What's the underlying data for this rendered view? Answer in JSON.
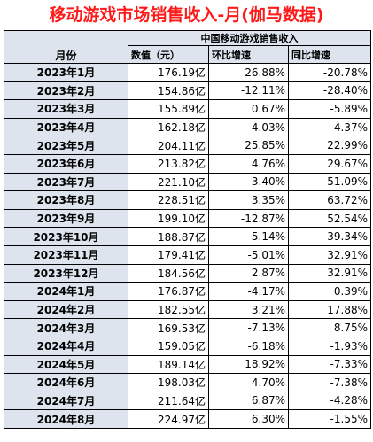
{
  "title": "移动游戏市场销售收入-月(伽马数据)",
  "table": {
    "month_header": "月份",
    "group_header": "中国移动游戏销售收入",
    "columns": [
      "数值（元）",
      "环比增速",
      "同比增速"
    ],
    "rows": [
      {
        "month": "2023年1月",
        "value": "176.19亿",
        "mom": "26.88%",
        "yoy": "-20.78%"
      },
      {
        "month": "2023年2月",
        "value": "154.86亿",
        "mom": "-12.11%",
        "yoy": "-28.40%"
      },
      {
        "month": "2023年3月",
        "value": "155.89亿",
        "mom": "0.67%",
        "yoy": "-5.89%"
      },
      {
        "month": "2023年4月",
        "value": "162.18亿",
        "mom": "4.03%",
        "yoy": "-4.37%"
      },
      {
        "month": "2023年5月",
        "value": "204.11亿",
        "mom": "25.85%",
        "yoy": "22.99%"
      },
      {
        "month": "2023年6月",
        "value": "213.82亿",
        "mom": "4.76%",
        "yoy": "29.67%"
      },
      {
        "month": "2023年7月",
        "value": "221.10亿",
        "mom": "3.40%",
        "yoy": "51.09%"
      },
      {
        "month": "2023年8月",
        "value": "228.51亿",
        "mom": "3.35%",
        "yoy": "63.72%"
      },
      {
        "month": "2023年9月",
        "value": "199.10亿",
        "mom": "-12.87%",
        "yoy": "52.54%"
      },
      {
        "month": "2023年10月",
        "value": "188.87亿",
        "mom": "-5.14%",
        "yoy": "39.34%"
      },
      {
        "month": "2023年11月",
        "value": "179.41亿",
        "mom": "-5.01%",
        "yoy": "32.91%"
      },
      {
        "month": "2023年12月",
        "value": "184.56亿",
        "mom": "2.87%",
        "yoy": "32.91%"
      },
      {
        "month": "2024年1月",
        "value": "176.87亿",
        "mom": "-4.17%",
        "yoy": "0.39%"
      },
      {
        "month": "2024年2月",
        "value": "182.55亿",
        "mom": "3.21%",
        "yoy": "17.88%"
      },
      {
        "month": "2024年3月",
        "value": "169.53亿",
        "mom": "-7.13%",
        "yoy": "8.75%"
      },
      {
        "month": "2024年4月",
        "value": "159.05亿",
        "mom": "-6.18%",
        "yoy": "-1.93%"
      },
      {
        "month": "2024年5月",
        "value": "189.14亿",
        "mom": "18.92%",
        "yoy": "-7.33%"
      },
      {
        "month": "2024年6月",
        "value": "198.03亿",
        "mom": "4.70%",
        "yoy": "-7.38%"
      },
      {
        "month": "2024年7月",
        "value": "211.64亿",
        "mom": "6.87%",
        "yoy": "-4.28%"
      },
      {
        "month": "2024年8月",
        "value": "224.97亿",
        "mom": "6.30%",
        "yoy": "-1.55%"
      }
    ]
  },
  "colors": {
    "title": "#ff1a1a",
    "header_fill": "#dde4ee",
    "border": "#000000"
  }
}
